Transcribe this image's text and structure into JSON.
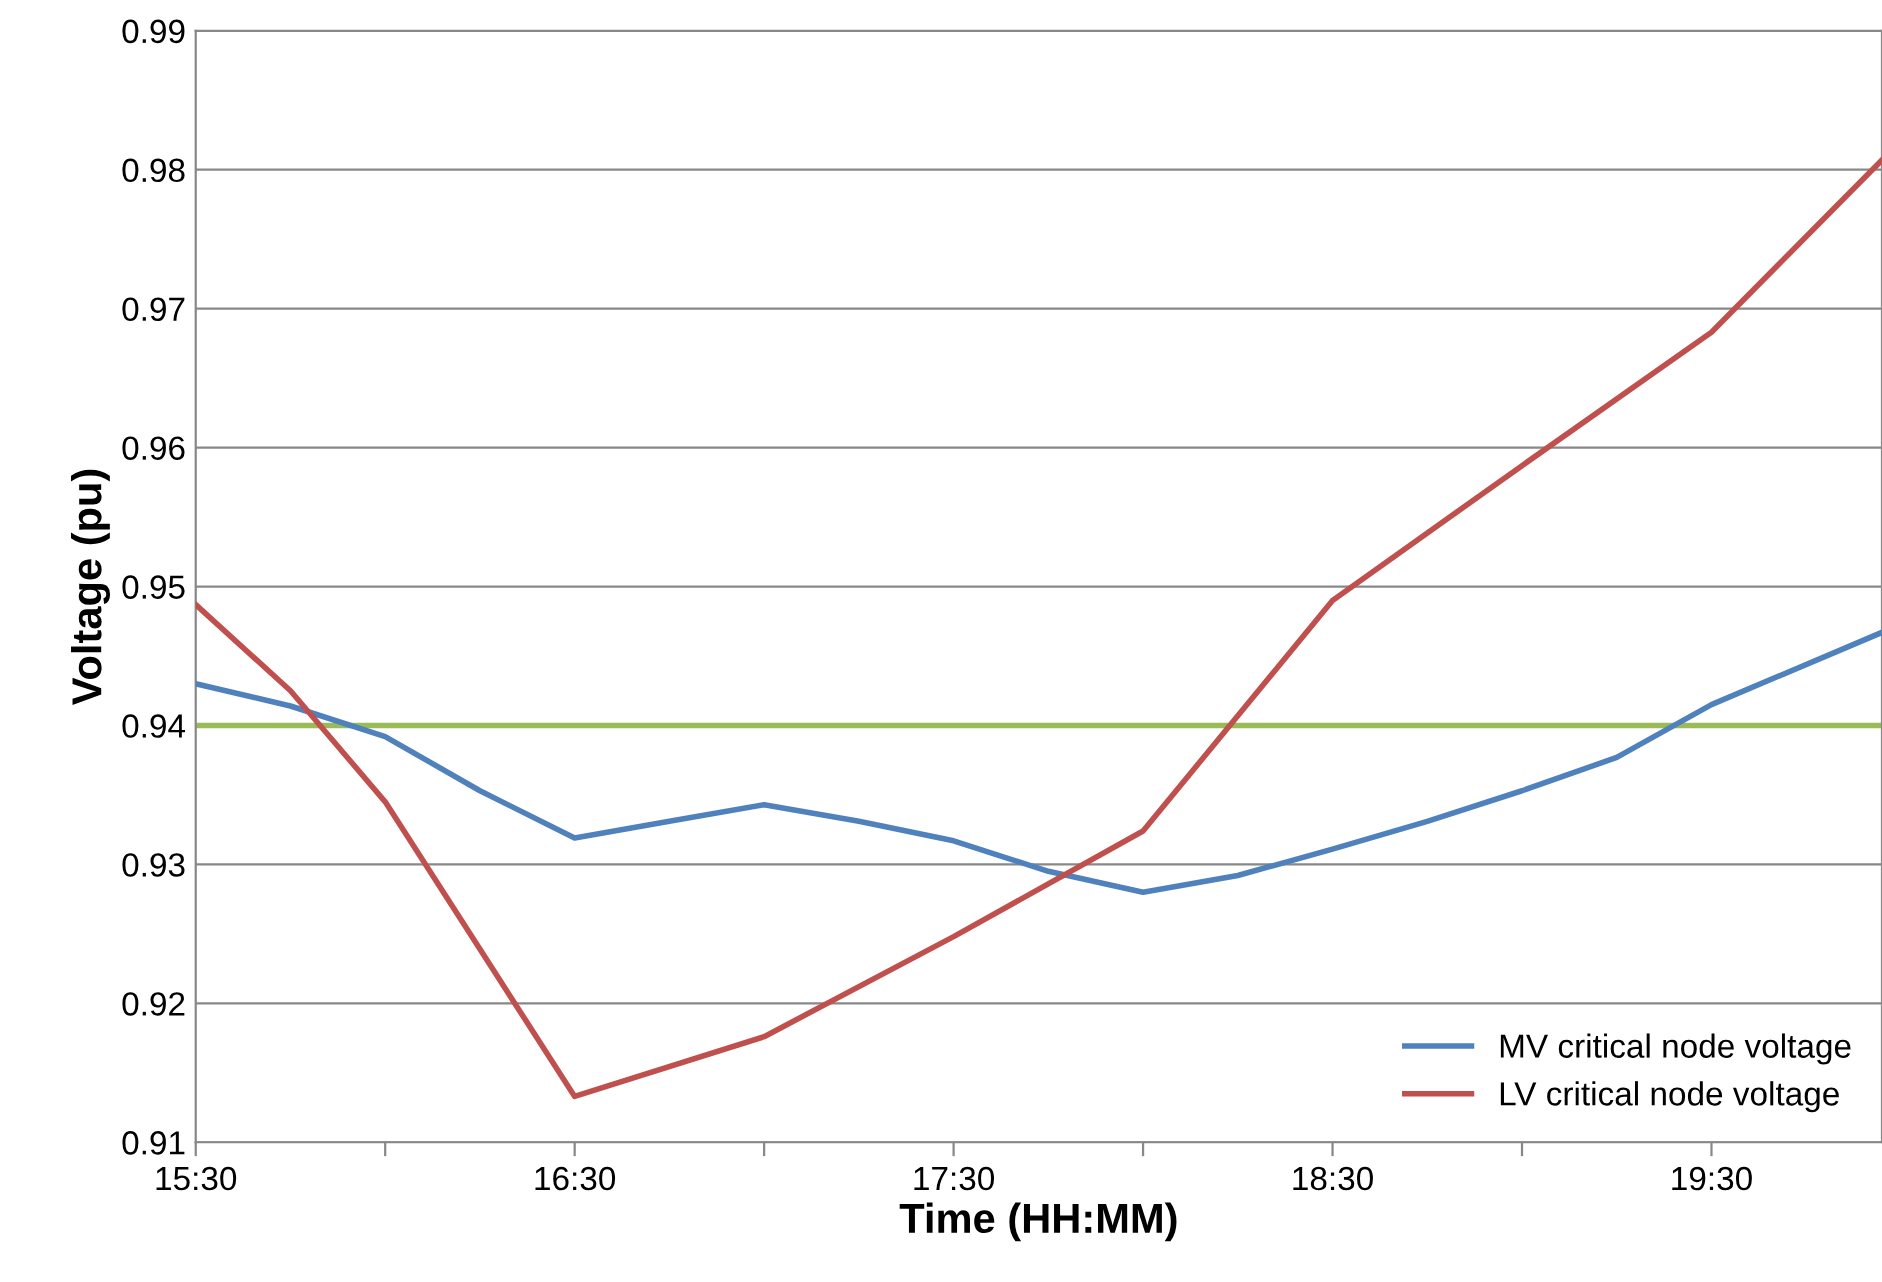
{
  "chart_data": {
    "type": "line",
    "xlabel": "Time (HH:MM)",
    "ylabel": "Voltage (pu)",
    "xlim": [
      15.5,
      19.95
    ],
    "ylim": [
      0.91,
      0.99
    ],
    "xticks": [
      {
        "value": 15.5,
        "label": "15:30"
      },
      {
        "value": 16.0,
        "label": null
      },
      {
        "value": 16.5,
        "label": "16:30"
      },
      {
        "value": 17.0,
        "label": null
      },
      {
        "value": 17.5,
        "label": "17:30"
      },
      {
        "value": 18.0,
        "label": null
      },
      {
        "value": 18.5,
        "label": "18:30"
      },
      {
        "value": 19.0,
        "label": null
      },
      {
        "value": 19.5,
        "label": "19:30"
      }
    ],
    "yticks": [
      0.91,
      0.92,
      0.93,
      0.94,
      0.95,
      0.96,
      0.97,
      0.98,
      0.99
    ],
    "grid": "y",
    "legend": "bottom right",
    "marker": "none",
    "line_style": "solid",
    "series": [
      {
        "name": "MV critical node voltage",
        "color": "#4f81bd",
        "x": [
          15.5,
          15.75,
          16.0,
          16.25,
          16.5,
          16.75,
          17.0,
          17.25,
          17.5,
          17.75,
          18.0,
          18.25,
          18.5,
          18.75,
          19.0,
          19.25,
          19.5,
          19.95
        ],
        "values": [
          0.943,
          0.9414,
          0.9392,
          0.9353,
          0.9319,
          0.9331,
          0.9343,
          0.9331,
          0.9317,
          0.9295,
          0.928,
          0.9292,
          0.9311,
          0.9331,
          0.9353,
          0.9377,
          0.9415,
          0.9467
        ]
      },
      {
        "name": "LV critical node voltage",
        "color": "#c0504d",
        "x": [
          15.5,
          15.75,
          16.0,
          16.5,
          17.0,
          17.5,
          18.0,
          18.5,
          19.0,
          19.5,
          19.95
        ],
        "values": [
          0.9487,
          0.9425,
          0.9345,
          0.9133,
          0.9176,
          0.9248,
          0.9324,
          0.949,
          0.9587,
          0.9683,
          0.9807
        ]
      }
    ],
    "ref_lines": [
      {
        "axis": "y",
        "value": 0.94,
        "color": "#9bbb59",
        "line_style": "solid"
      }
    ]
  }
}
